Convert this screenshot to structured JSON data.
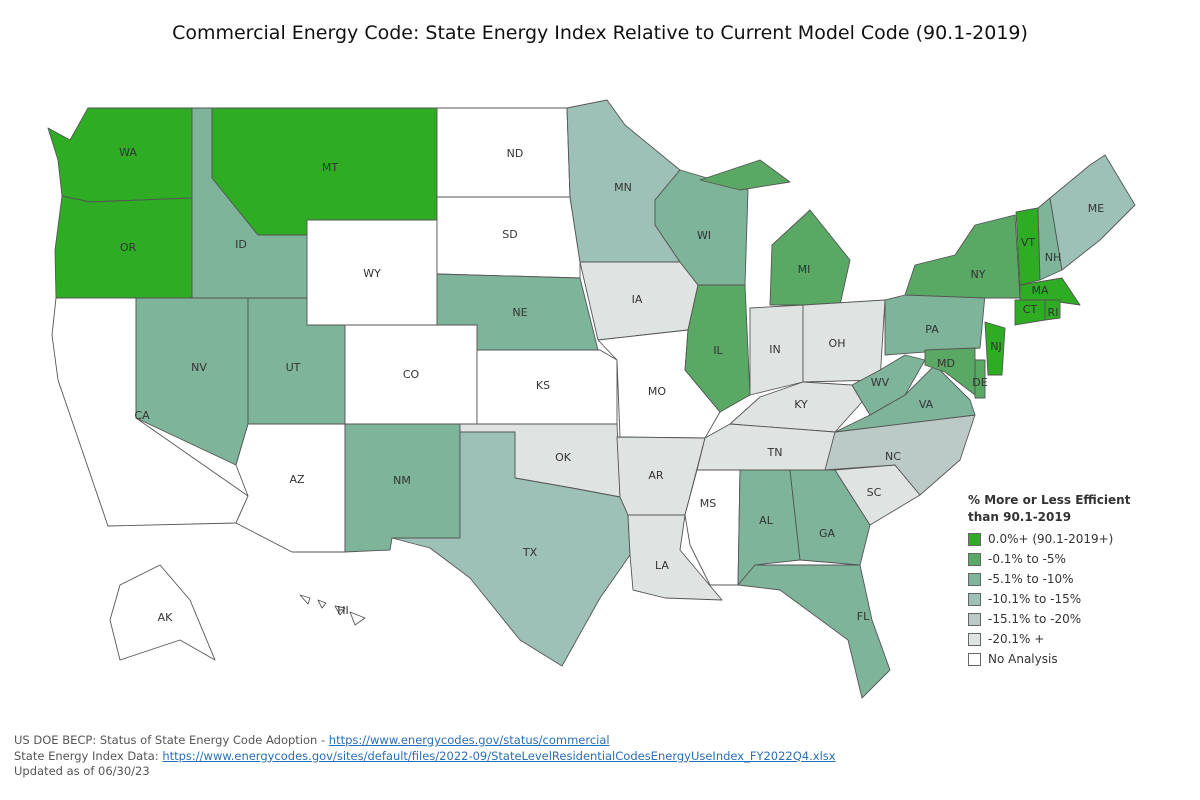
{
  "title": "Commercial Energy Code: State Energy Index Relative to Current Model Code (90.1-2019)",
  "colors": {
    "c0": "#2eac24",
    "c1": "#59a964",
    "c2": "#7eb49a",
    "c3": "#9dc1b6",
    "c4": "#bccac7",
    "c5": "#dfe4e3",
    "none": "#ffffff",
    "border": "#555555"
  },
  "legend": {
    "title_line1": "% More or Less Efficient",
    "title_line2": "than 90.1-2019",
    "items": [
      {
        "label": "0.0%+ (90.1-2019+)",
        "category": "c0"
      },
      {
        "label": "-0.1% to -5%",
        "category": "c1"
      },
      {
        "label": "-5.1% to -10%",
        "category": "c2"
      },
      {
        "label": "-10.1% to -15%",
        "category": "c3"
      },
      {
        "label": "-15.1% to -20%",
        "category": "c4"
      },
      {
        "label": "-20.1% +",
        "category": "c5"
      },
      {
        "label": "No Analysis",
        "category": "none"
      }
    ]
  },
  "states": [
    {
      "abbr": "WA",
      "category": "c0"
    },
    {
      "abbr": "OR",
      "category": "c0"
    },
    {
      "abbr": "CA",
      "category": "none"
    },
    {
      "abbr": "ID",
      "category": "c2"
    },
    {
      "abbr": "NV",
      "category": "c2"
    },
    {
      "abbr": "MT",
      "category": "c0"
    },
    {
      "abbr": "WY",
      "category": "none"
    },
    {
      "abbr": "UT",
      "category": "c2"
    },
    {
      "abbr": "AZ",
      "category": "none"
    },
    {
      "abbr": "CO",
      "category": "none"
    },
    {
      "abbr": "NM",
      "category": "c2"
    },
    {
      "abbr": "ND",
      "category": "none"
    },
    {
      "abbr": "SD",
      "category": "none"
    },
    {
      "abbr": "NE",
      "category": "c2"
    },
    {
      "abbr": "KS",
      "category": "none"
    },
    {
      "abbr": "OK",
      "category": "c5"
    },
    {
      "abbr": "TX",
      "category": "c3"
    },
    {
      "abbr": "MN",
      "category": "c3"
    },
    {
      "abbr": "IA",
      "category": "c5"
    },
    {
      "abbr": "MO",
      "category": "none"
    },
    {
      "abbr": "AR",
      "category": "c5"
    },
    {
      "abbr": "LA",
      "category": "c5"
    },
    {
      "abbr": "WI",
      "category": "c2"
    },
    {
      "abbr": "IL",
      "category": "c1"
    },
    {
      "abbr": "MI",
      "category": "c1"
    },
    {
      "abbr": "IN",
      "category": "c5"
    },
    {
      "abbr": "OH",
      "category": "c5"
    },
    {
      "abbr": "KY",
      "category": "c5"
    },
    {
      "abbr": "TN",
      "category": "c5"
    },
    {
      "abbr": "MS",
      "category": "none"
    },
    {
      "abbr": "AL",
      "category": "c2"
    },
    {
      "abbr": "GA",
      "category": "c2"
    },
    {
      "abbr": "FL",
      "category": "c2"
    },
    {
      "abbr": "SC",
      "category": "c5"
    },
    {
      "abbr": "NC",
      "category": "c4"
    },
    {
      "abbr": "VA",
      "category": "c2"
    },
    {
      "abbr": "WV",
      "category": "c2"
    },
    {
      "abbr": "PA",
      "category": "c2"
    },
    {
      "abbr": "NY",
      "category": "c1"
    },
    {
      "abbr": "VT",
      "category": "c0"
    },
    {
      "abbr": "NH",
      "category": "c2"
    },
    {
      "abbr": "ME",
      "category": "c3"
    },
    {
      "abbr": "MA",
      "category": "c0"
    },
    {
      "abbr": "CT",
      "category": "c0"
    },
    {
      "abbr": "RI",
      "category": "c0"
    },
    {
      "abbr": "NJ",
      "category": "c0"
    },
    {
      "abbr": "DE",
      "category": "c1"
    },
    {
      "abbr": "MD",
      "category": "c1"
    },
    {
      "abbr": "AK",
      "category": "none"
    },
    {
      "abbr": "HI",
      "category": "none"
    }
  ],
  "footer": {
    "line1_prefix": "US DOE BECP: Status of State Energy Code Adoption - ",
    "line1_link": "https://www.energycodes.gov/status/commercial",
    "line2_prefix": "State Energy Index Data: ",
    "line2_link": "https://www.energycodes.gov/sites/default/files/2022-09/StateLevelResidentialCodesEnergyUseIndex_FY2022Q4.xlsx",
    "line3": "Updated as of 06/30/23"
  }
}
